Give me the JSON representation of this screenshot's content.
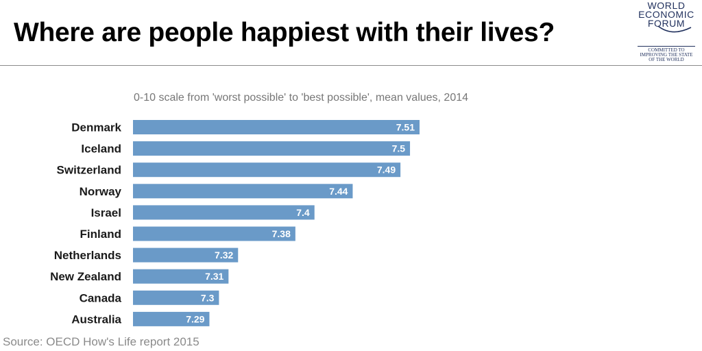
{
  "header": {
    "title": "Where are people happiest with their lives?"
  },
  "logo": {
    "line1": "WORLD",
    "line2": "ECONOMIC",
    "line3": "FORUM",
    "tagline1": "COMMITTED TO",
    "tagline2": "IMPROVING THE STATE",
    "tagline3": "OF THE WORLD"
  },
  "footer": {
    "source": "Source: OECD How's Life report 2015"
  },
  "colors": {
    "bar": "#6a9ac8",
    "label": "#1a1a1a",
    "value": "#ffffff"
  },
  "chart_data": {
    "type": "bar",
    "orientation": "horizontal",
    "subtitle": "0-10 scale from 'worst possible' to 'best possible', mean values, 2014",
    "categories": [
      "Denmark",
      "Iceland",
      "Switzerland",
      "Norway",
      "Israel",
      "Finland",
      "Netherlands",
      "New Zealand",
      "Canada",
      "Australia"
    ],
    "values": [
      7.51,
      7.5,
      7.49,
      7.44,
      7.4,
      7.38,
      7.32,
      7.31,
      7.3,
      7.29
    ],
    "value_labels": [
      "7.51",
      "7.5",
      "7.49",
      "7.44",
      "7.4",
      "7.38",
      "7.32",
      "7.31",
      "7.3",
      "7.29"
    ],
    "xlim": [
      7.21,
      7.51
    ],
    "xlabel": "",
    "ylabel": "",
    "grid": false,
    "legend": "none"
  }
}
